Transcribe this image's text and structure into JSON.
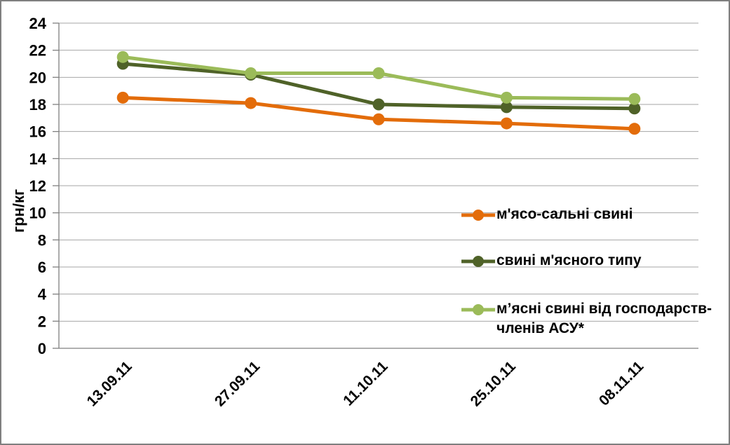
{
  "chart_data": {
    "type": "line",
    "title": "",
    "xlabel": "",
    "ylabel": "грн/кг",
    "categories": [
      "13.09.11",
      "27.09.11",
      "11.10.11",
      "25.10.11",
      "08.11.11"
    ],
    "series": [
      {
        "name": "м'ясо-сальні свині",
        "color": "#E36C0A",
        "values": [
          18.5,
          18.1,
          16.9,
          16.6,
          16.2
        ]
      },
      {
        "name": "свині м'ясного типу",
        "color": "#4F6228",
        "values": [
          21.0,
          20.2,
          18.0,
          17.8,
          17.7
        ]
      },
      {
        "name": "м’ясні свині від господарств-членів АСУ*",
        "color": "#9BBB59",
        "values": [
          21.5,
          20.3,
          20.3,
          18.5,
          18.4
        ]
      }
    ],
    "ylim": [
      0,
      24
    ],
    "ytick_step": 2,
    "yticks": [
      0,
      2,
      4,
      6,
      8,
      10,
      12,
      14,
      16,
      18,
      20,
      22,
      24
    ],
    "grid": true,
    "legend_position": "inside-right",
    "marker": "circle",
    "x_label_rotation_deg": 45
  },
  "colors": {
    "gridline": "#A6A6A6",
    "axis": "#808080",
    "text": "#000000",
    "background": "#FFFFFF",
    "frame_border": "#7F7F7F"
  }
}
